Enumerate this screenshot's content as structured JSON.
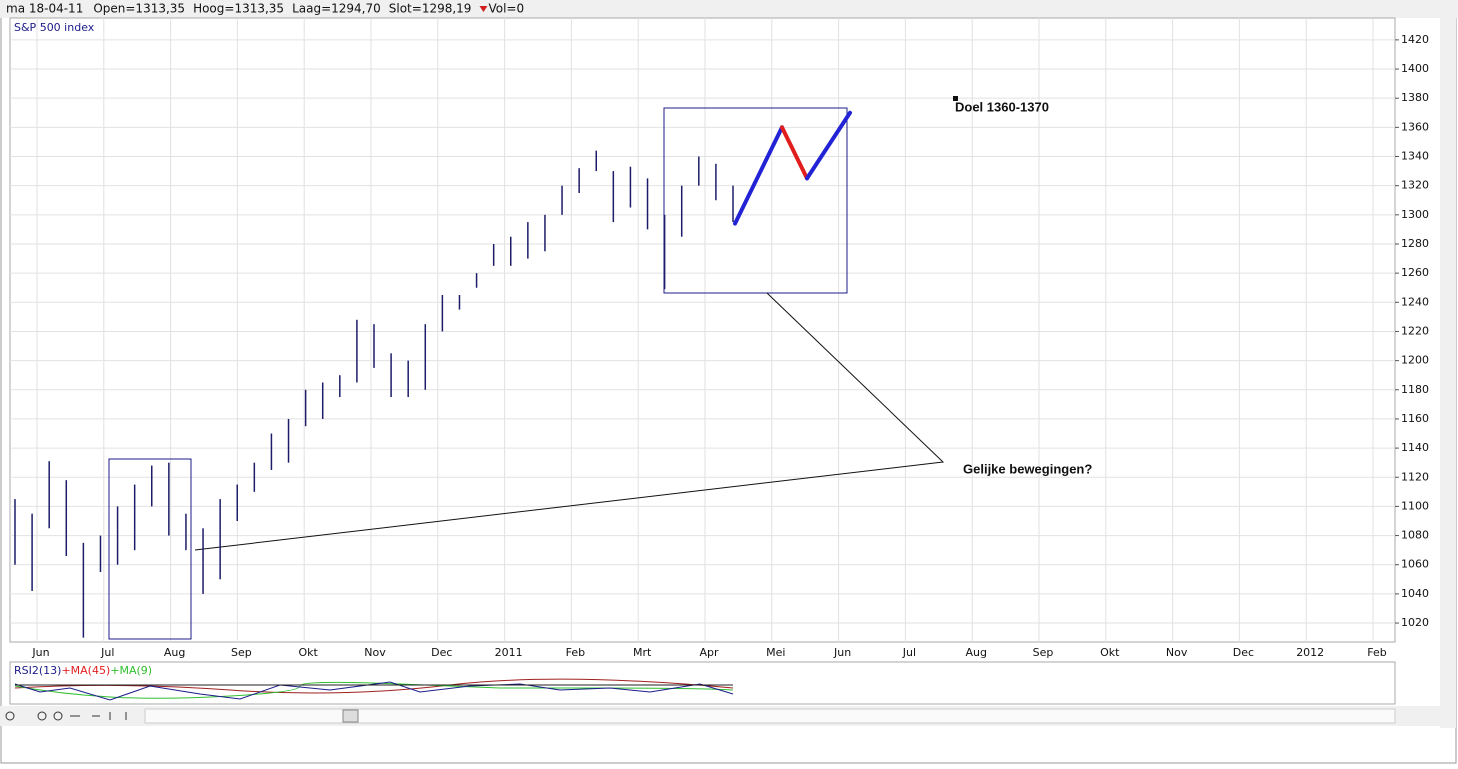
{
  "header": {
    "date": "ma 18-04-11",
    "fields": [
      "Open=1313,35",
      "Hoog=1313,35",
      "Laag=1294,70",
      "Slot=1298,19",
      "Vol=0"
    ]
  },
  "chart_data": {
    "type": "ohlc",
    "title": "S&P 500 index",
    "x_labels": [
      "Jun",
      "Jul",
      "Aug",
      "Sep",
      "Okt",
      "Nov",
      "Dec",
      "2011",
      "Feb",
      "Mrt",
      "Apr",
      "Mei",
      "Jun",
      "Jul",
      "Aug",
      "Sep",
      "Okt",
      "Nov",
      "Dec",
      "2012",
      "Feb"
    ],
    "high": [
      1105,
      1095,
      1131,
      1118,
      1075,
      1080,
      1100,
      1115,
      1128,
      1130,
      1095,
      1085,
      1105,
      1115,
      1130,
      1150,
      1160,
      1180,
      1185,
      1190,
      1228,
      1225,
      1205,
      1200,
      1225,
      1245,
      1245,
      1260,
      1280,
      1285,
      1295,
      1300,
      1320,
      1332,
      1344,
      1330,
      1333,
      1325,
      1300,
      1320,
      1340,
      1335,
      1320
    ],
    "low": [
      1060,
      1042,
      1085,
      1066,
      1010,
      1055,
      1060,
      1070,
      1100,
      1080,
      1070,
      1040,
      1050,
      1090,
      1110,
      1125,
      1130,
      1155,
      1160,
      1175,
      1185,
      1195,
      1175,
      1175,
      1180,
      1220,
      1235,
      1250,
      1265,
      1265,
      1270,
      1275,
      1300,
      1315,
      1330,
      1295,
      1305,
      1290,
      1249,
      1285,
      1320,
      1310,
      1295
    ],
    "color": "#1c1c6a",
    "ylim": [
      1007,
      1435
    ],
    "yticks": [
      1020,
      1040,
      1060,
      1080,
      1100,
      1120,
      1140,
      1160,
      1180,
      1200,
      1220,
      1240,
      1260,
      1280,
      1300,
      1320,
      1340,
      1360,
      1380,
      1400,
      1420
    ],
    "grid": true,
    "projection": {
      "values": [
        1294,
        1360,
        1325,
        1370
      ],
      "colors": [
        "#2323d6",
        "#e01e1e",
        "#2323d6"
      ]
    },
    "annotations": [
      "Doel 1360-1370",
      "Gelijke bewegingen?"
    ],
    "indicator_legend": [
      {
        "text": "RSI2(13)",
        "color": "#1c1c8a"
      },
      {
        "text": "+MA(45)",
        "color": "#e02020"
      },
      {
        "text": "+MA(9)",
        "color": "#30c030"
      }
    ]
  }
}
